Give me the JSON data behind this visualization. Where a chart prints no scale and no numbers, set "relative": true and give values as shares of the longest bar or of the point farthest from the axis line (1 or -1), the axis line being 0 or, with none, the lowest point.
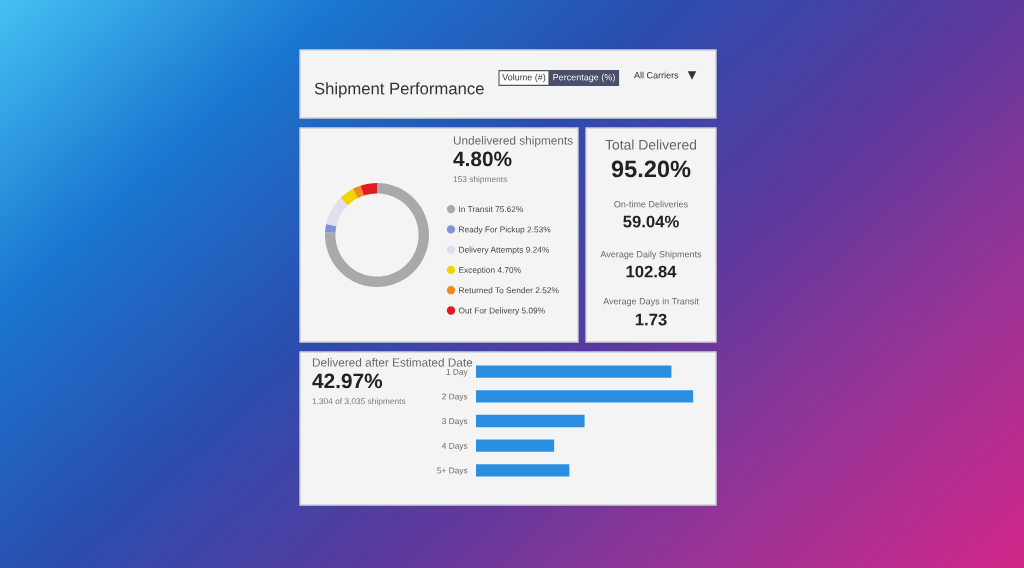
{
  "chart_data": [
    {
      "type": "other",
      "title": "Shipment Performance",
      "annotations": [
        "Volume (#)",
        "Percentage (%)",
        "All Carriers"
      ]
    },
    {
      "type": "donut",
      "title": "Undelivered shipments",
      "subtitle": "4.80%",
      "annotations": [
        "153 shipments"
      ],
      "categories": [
        "In Transit",
        "Ready For Pickup",
        "Delivery Attempts",
        "Exception",
        "Returned To Sender",
        "Out For Delivery"
      ],
      "values": [
        75.62,
        2.53,
        9.24,
        4.7,
        2.52,
        5.09
      ],
      "value_labels": [
        "75.62%",
        "2.53%",
        "9.24%",
        "4.70%",
        "2.52%",
        "5.09%"
      ],
      "colors": [
        "#a9a9a9",
        "#7f93d9",
        "#e4dcef",
        "#f2d400",
        "#f08a1e",
        "#e01b22"
      ],
      "legend": "right"
    },
    {
      "type": "other",
      "annotations": [
        "Total Delivered",
        "95.20%",
        "On-time Deliveries",
        "59.04%",
        "Average Daily Shipments",
        "102.84",
        "Average Days in Transit",
        "1.73"
      ]
    },
    {
      "type": "bar",
      "orientation": "horizontal",
      "relative": true,
      "title": "Delivered after Estimated Date",
      "subtitle": "42.97%",
      "annotations": [
        "1,304 of 3,035 shipments"
      ],
      "categories": [
        "1 Day",
        "2 Days",
        "3 Days",
        "4 Days",
        "5+ Days"
      ],
      "values": [
        0.9,
        1,
        0.5,
        0.36,
        0.43
      ],
      "color": "#2a8fe0"
    }
  ]
}
